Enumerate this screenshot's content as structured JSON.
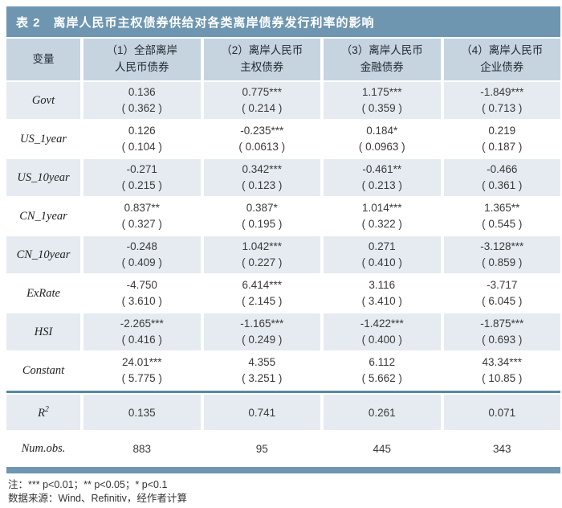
{
  "table": {
    "title": "表 2　离岸人民币主权债券供给对各类离岸债券发行利率的影响",
    "headers": [
      "变量",
      "（1）全部离岸\n人民币债券",
      "（2）离岸人民币\n主权债券",
      "（3）离岸人民币\n金融债券",
      "（4）离岸人民币\n企业债券"
    ],
    "rows": [
      {
        "label": "Govt",
        "cells": [
          {
            "coef": "0.136",
            "se": "( 0.362 )"
          },
          {
            "coef": "0.775***",
            "se": "( 0.214 )"
          },
          {
            "coef": "1.175***",
            "se": "( 0.359 )"
          },
          {
            "coef": "-1.849***",
            "se": "( 0.713 )"
          }
        ]
      },
      {
        "label": "US_1year",
        "cells": [
          {
            "coef": "0.126",
            "se": "( 0.104 )"
          },
          {
            "coef": "-0.235***",
            "se": "( 0.0613 )"
          },
          {
            "coef": "0.184*",
            "se": "( 0.0963 )"
          },
          {
            "coef": "0.219",
            "se": "( 0.187 )"
          }
        ]
      },
      {
        "label": "US_10year",
        "cells": [
          {
            "coef": "-0.271",
            "se": "( 0.215 )"
          },
          {
            "coef": "0.342***",
            "se": "( 0.123 )"
          },
          {
            "coef": "-0.461**",
            "se": "( 0.213 )"
          },
          {
            "coef": "-0.466",
            "se": "( 0.361 )"
          }
        ]
      },
      {
        "label": "CN_1year",
        "cells": [
          {
            "coef": "0.837**",
            "se": "( 0.327 )"
          },
          {
            "coef": "0.387*",
            "se": "( 0.195 )"
          },
          {
            "coef": "1.014***",
            "se": "( 0.322 )"
          },
          {
            "coef": "1.365**",
            "se": "( 0.545 )"
          }
        ]
      },
      {
        "label": "CN_10year",
        "cells": [
          {
            "coef": "-0.248",
            "se": "( 0.409 )"
          },
          {
            "coef": "1.042***",
            "se": "( 0.227 )"
          },
          {
            "coef": "0.271",
            "se": "( 0.410 )"
          },
          {
            "coef": "-3.128***",
            "se": "( 0.859 )"
          }
        ]
      },
      {
        "label": "ExRate",
        "cells": [
          {
            "coef": "-4.750",
            "se": "( 3.610 )"
          },
          {
            "coef": "6.414***",
            "se": "( 2.145 )"
          },
          {
            "coef": "3.116",
            "se": "( 3.410 )"
          },
          {
            "coef": "-3.717",
            "se": "( 6.045 )"
          }
        ]
      },
      {
        "label": "HSI",
        "cells": [
          {
            "coef": "-2.265***",
            "se": "( 0.416 )"
          },
          {
            "coef": "-1.165***",
            "se": "( 0.249 )"
          },
          {
            "coef": "-1.422***",
            "se": "( 0.400 )"
          },
          {
            "coef": "-1.875***",
            "se": "( 0.693 )"
          }
        ]
      },
      {
        "label": "Constant",
        "cells": [
          {
            "coef": "24.01***",
            "se": "( 5.775 )"
          },
          {
            "coef": "4.355",
            "se": "( 3.251 )"
          },
          {
            "coef": "6.112",
            "se": "( 5.662 )"
          },
          {
            "coef": "43.34***",
            "se": "( 10.85 )"
          }
        ]
      }
    ],
    "stats": {
      "r2": {
        "label_base": "R",
        "label_sup": "2",
        "values": [
          "0.135",
          "0.741",
          "0.261",
          "0.071"
        ]
      },
      "num_obs": {
        "label": "Num.obs.",
        "values": [
          "883",
          "95",
          "445",
          "343"
        ]
      }
    }
  },
  "notes": {
    "significance": "注：*** p<0.01；** p<0.05；* p<0.1",
    "source": "数据来源：Wind、Refinitiv，经作者计算"
  },
  "colors": {
    "accent_bar": "#6e96b1",
    "header_bg": "#c6d4e0",
    "shaded_row_bg": "#e5ebf0",
    "divider": "#5787a8"
  }
}
